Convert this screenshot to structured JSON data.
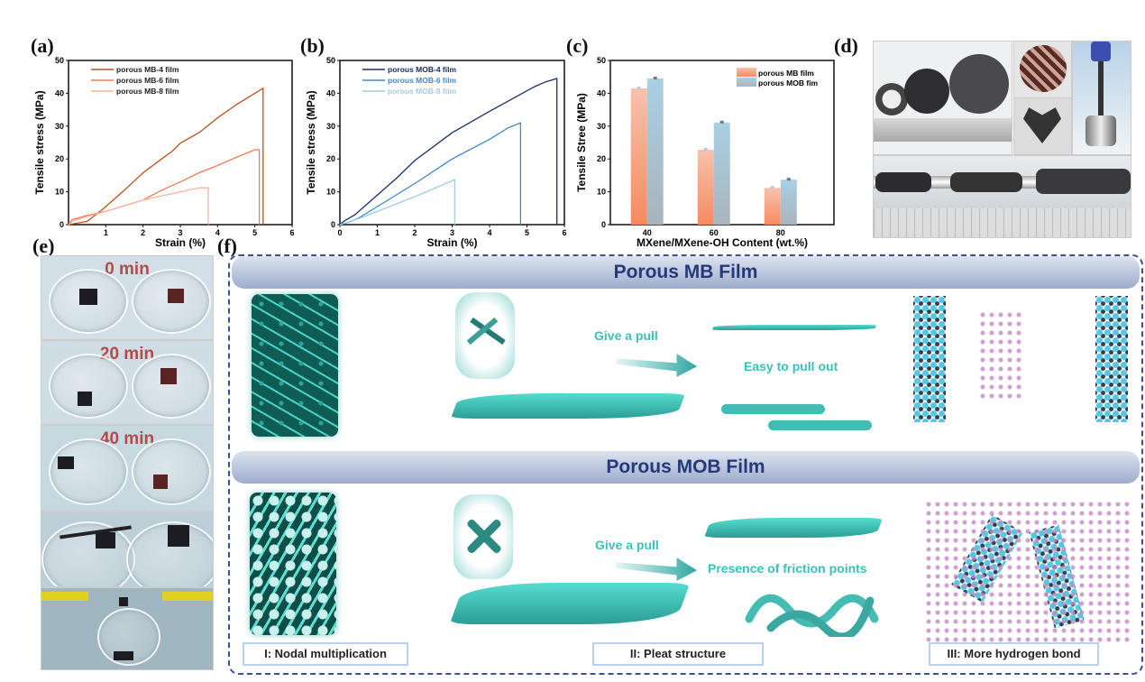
{
  "panel_labels": [
    "(a)",
    "(b)",
    "(c)",
    "(d)",
    "(e)",
    "(f)"
  ],
  "chart_data": [
    {
      "type": "line",
      "xlabel": "Strain (%)",
      "ylabel": "Tensile stress (MPa)",
      "xlim": [
        0,
        6
      ],
      "ylim": [
        0,
        50
      ],
      "xticks": [
        1,
        2,
        3,
        4,
        5,
        6
      ],
      "yticks": [
        0,
        10,
        20,
        30,
        40,
        50
      ],
      "legend": "top-left",
      "series": [
        {
          "name": "porous MB-4 film",
          "color": "#c0501a",
          "x": [
            0,
            0.5,
            0.9,
            1.5,
            2,
            2.5,
            2.8,
            3,
            3.5,
            4,
            4.5,
            5,
            5.22,
            5.22
          ],
          "y": [
            0,
            1,
            4.5,
            10.5,
            15.8,
            20,
            22.5,
            24.8,
            28,
            32.5,
            36.5,
            40,
            41.5,
            0
          ]
        },
        {
          "name": "porous MB-6 film",
          "color": "#f07a58",
          "x": [
            0,
            0.1,
            0.5,
            1,
            2,
            2.5,
            3,
            3.5,
            4,
            4.5,
            5,
            5.12,
            5.12
          ],
          "y": [
            0,
            1.5,
            2.8,
            4,
            7.5,
            10.5,
            13,
            15.8,
            18,
            20.5,
            22.8,
            22.8,
            0
          ]
        },
        {
          "name": "porous MB-8 film",
          "color": "#f8b49c",
          "x": [
            0,
            0.1,
            0.5,
            1,
            2,
            3,
            3.5,
            3.75,
            3.75
          ],
          "y": [
            0,
            1,
            2.5,
            4,
            7.5,
            10,
            11.2,
            11.2,
            0
          ]
        }
      ]
    },
    {
      "type": "line",
      "xlabel": "Strain (%)",
      "ylabel": "Tensile stress (MPa)",
      "xlim": [
        0,
        6
      ],
      "ylim": [
        0,
        50
      ],
      "xticks": [
        0,
        1,
        2,
        3,
        4,
        5,
        6
      ],
      "yticks": [
        0,
        10,
        20,
        30,
        40,
        50
      ],
      "legend": "top-left",
      "series": [
        {
          "name": "porous MOB-4 film",
          "color": "#1a2f6a",
          "x": [
            0,
            0.1,
            0.4,
            1,
            1.5,
            2,
            3,
            4,
            4.8,
            5.2,
            5.5,
            5.8,
            5.8
          ],
          "y": [
            0,
            1,
            3,
            9,
            14,
            19.5,
            28,
            34.5,
            39.5,
            42,
            43.5,
            44.5,
            0
          ]
        },
        {
          "name": "porous MOB-6  film",
          "color": "#3c8ac8",
          "x": [
            0,
            0.3,
            0.5,
            1,
            2,
            3,
            4,
            4.5,
            4.83,
            4.83
          ],
          "y": [
            0,
            1,
            2,
            5.5,
            12.5,
            20,
            26,
            29.5,
            31,
            0
          ]
        },
        {
          "name": "porous MOB-8  film",
          "color": "#a0cce4",
          "x": [
            0,
            0.5,
            1,
            2,
            3.07,
            3.07
          ],
          "y": [
            0,
            1.8,
            4,
            8.5,
            13.7,
            0
          ]
        }
      ]
    },
    {
      "type": "bar",
      "xlabel": "MXene/MXene-OH Content (wt.%)",
      "ylabel": "Tensile Stree (MPa)",
      "ylim": [
        0,
        50
      ],
      "yticks": [
        0,
        10,
        20,
        30,
        40,
        50
      ],
      "categories": [
        "40",
        "60",
        "80"
      ],
      "legend": "top-right",
      "series": [
        {
          "name": "porous MB film",
          "color": "#f79068",
          "values": [
            41.5,
            22.8,
            11.2
          ]
        },
        {
          "name": "porous MOB fim",
          "color": "#a8d0e4",
          "values": [
            44.5,
            31.1,
            13.7
          ]
        }
      ]
    }
  ],
  "panel_e": {
    "times": [
      "0 min",
      "20 min",
      "40 min"
    ]
  },
  "panel_f": {
    "mb_title": "Porous MB Film",
    "mob_title": "Porous MOB Film",
    "mb_pull": "Give a pull",
    "mb_result": "Easy to pull out",
    "mob_pull": "Give a pull",
    "mob_result": "Presence of friction points",
    "captions": [
      "I: Nodal multiplication",
      "II: Pleat structure",
      "III: More hydrogen bond"
    ]
  }
}
